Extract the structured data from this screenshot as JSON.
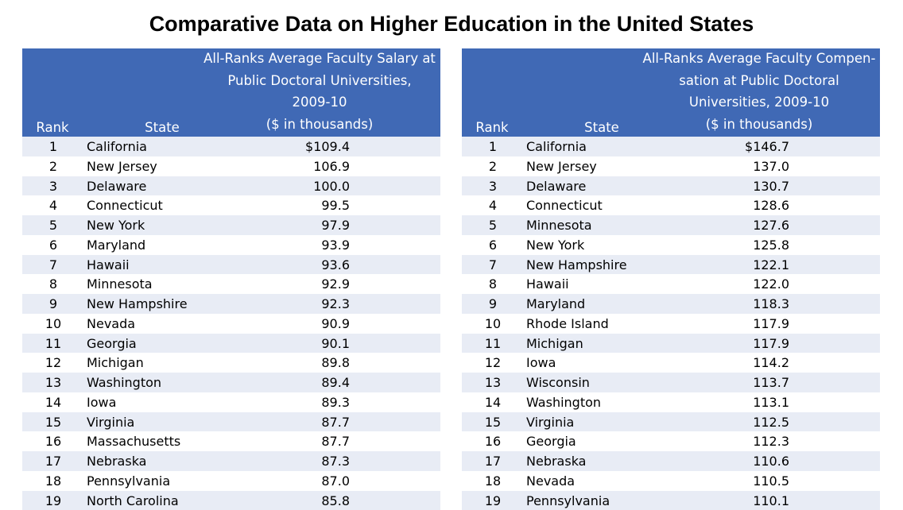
{
  "title": "Comparative Data on Higher Education in the United States",
  "colors": {
    "header_bg": "#4069b5",
    "stripe": "#e8ecf5"
  },
  "tables": [
    {
      "rank_header": "Rank",
      "state_header": "State",
      "value_header_lines": [
        "All-Ranks Average Faculty Salary at",
        "Public Doctoral Universities,",
        "2009-10",
        "($ in thousands)"
      ],
      "rows": [
        {
          "rank": "1",
          "state": "California",
          "value": "$109.4"
        },
        {
          "rank": "2",
          "state": "New Jersey",
          "value": "106.9"
        },
        {
          "rank": "3",
          "state": "Delaware",
          "value": "100.0"
        },
        {
          "rank": "4",
          "state": "Connecticut",
          "value": "99.5"
        },
        {
          "rank": "5",
          "state": "New York",
          "value": "97.9"
        },
        {
          "rank": "6",
          "state": "Maryland",
          "value": "93.9"
        },
        {
          "rank": "7",
          "state": "Hawaii",
          "value": "93.6"
        },
        {
          "rank": "8",
          "state": "Minnesota",
          "value": "92.9"
        },
        {
          "rank": "9",
          "state": "New Hampshire",
          "value": "92.3"
        },
        {
          "rank": "10",
          "state": "Nevada",
          "value": "90.9"
        },
        {
          "rank": "11",
          "state": "Georgia",
          "value": "90.1"
        },
        {
          "rank": "12",
          "state": "Michigan",
          "value": "89.8"
        },
        {
          "rank": "13",
          "state": "Washington",
          "value": "89.4"
        },
        {
          "rank": "14",
          "state": "Iowa",
          "value": "89.3"
        },
        {
          "rank": "15",
          "state": "Virginia",
          "value": "87.7"
        },
        {
          "rank": "16",
          "state": "Massachusetts",
          "value": "87.7"
        },
        {
          "rank": "17",
          "state": "Nebraska",
          "value": "87.3"
        },
        {
          "rank": "18",
          "state": "Pennsylvania",
          "value": "87.0"
        },
        {
          "rank": "19",
          "state": "North Carolina",
          "value": "85.8"
        }
      ]
    },
    {
      "rank_header": "Rank",
      "state_header": "State",
      "value_header_lines": [
        "All-Ranks Average Faculty Compen-",
        "sation at Public Doctoral",
        "Universities, 2009-10",
        "($ in thousands)"
      ],
      "rows": [
        {
          "rank": "1",
          "state": "California",
          "value": "$146.7"
        },
        {
          "rank": "2",
          "state": "New Jersey",
          "value": "137.0"
        },
        {
          "rank": "3",
          "state": "Delaware",
          "value": "130.7"
        },
        {
          "rank": "4",
          "state": "Connecticut",
          "value": "128.6"
        },
        {
          "rank": "5",
          "state": "Minnesota",
          "value": "127.6"
        },
        {
          "rank": "6",
          "state": "New York",
          "value": "125.8"
        },
        {
          "rank": "7",
          "state": "New Hampshire",
          "value": "122.1"
        },
        {
          "rank": "8",
          "state": "Hawaii",
          "value": "122.0"
        },
        {
          "rank": "9",
          "state": "Maryland",
          "value": "118.3"
        },
        {
          "rank": "10",
          "state": "Rhode Island",
          "value": "117.9"
        },
        {
          "rank": "11",
          "state": "Michigan",
          "value": "117.9"
        },
        {
          "rank": "12",
          "state": "Iowa",
          "value": "114.2"
        },
        {
          "rank": "13",
          "state": "Wisconsin",
          "value": "113.7"
        },
        {
          "rank": "14",
          "state": "Washington",
          "value": "113.1"
        },
        {
          "rank": "15",
          "state": "Virginia",
          "value": "112.5"
        },
        {
          "rank": "16",
          "state": "Georgia",
          "value": "112.3"
        },
        {
          "rank": "17",
          "state": "Nebraska",
          "value": "110.6"
        },
        {
          "rank": "18",
          "state": "Nevada",
          "value": "110.5"
        },
        {
          "rank": "19",
          "state": "Pennsylvania",
          "value": "110.1"
        }
      ]
    }
  ]
}
